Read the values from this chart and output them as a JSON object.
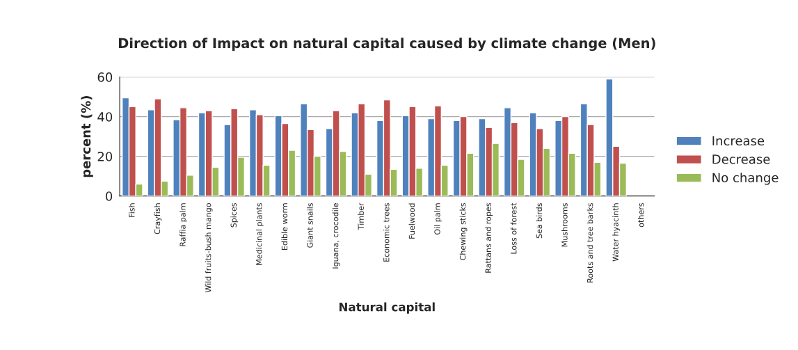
{
  "chart_data": {
    "type": "bar",
    "title": "Direction of Impact on natural capital caused by climate change (Men)",
    "xlabel": "Natural capital",
    "ylabel": "percent (%)",
    "categories": [
      "Fish",
      "Crayfish",
      "Raffia palm",
      "Wild fruits-bush mango",
      "Spices",
      "Medicinal plants",
      "Edible worm",
      "Giant snails",
      "Iguana, crocodile",
      "Timber",
      "Economic trees",
      "Fuelwood",
      "Oil palm",
      "Chewing sticks",
      "Rattans and ropes",
      "Loss of forest",
      "Sea birds",
      "Mushrooms",
      "Roots and tree barks",
      "Water hyacinth",
      "others"
    ],
    "series": [
      {
        "name": "Increase",
        "color": "#4f81bd",
        "values": [
          49.5,
          43.5,
          38.5,
          42,
          36,
          43.5,
          40.5,
          46.5,
          34,
          42,
          38,
          40.5,
          39,
          38,
          39,
          44.5,
          42,
          38,
          46.5,
          59,
          null
        ]
      },
      {
        "name": "Decrease",
        "color": "#c0504d",
        "values": [
          45,
          49,
          44.5,
          43,
          44,
          41,
          36.5,
          33.5,
          43,
          46.5,
          48.5,
          45,
          45.5,
          40,
          34.5,
          37,
          34,
          40,
          36,
          25,
          null
        ]
      },
      {
        "name": "No change",
        "color": "#9bbb59",
        "values": [
          6,
          7.5,
          10.5,
          14.5,
          19.5,
          15.5,
          23,
          20,
          22.5,
          11,
          13.5,
          14,
          15.5,
          21.5,
          26.5,
          18.5,
          24,
          21.5,
          17,
          16.5,
          null
        ]
      }
    ],
    "ylim": [
      0,
      60
    ],
    "yticks": [
      0,
      20,
      40,
      60
    ],
    "grid": "y",
    "legend": "right"
  }
}
